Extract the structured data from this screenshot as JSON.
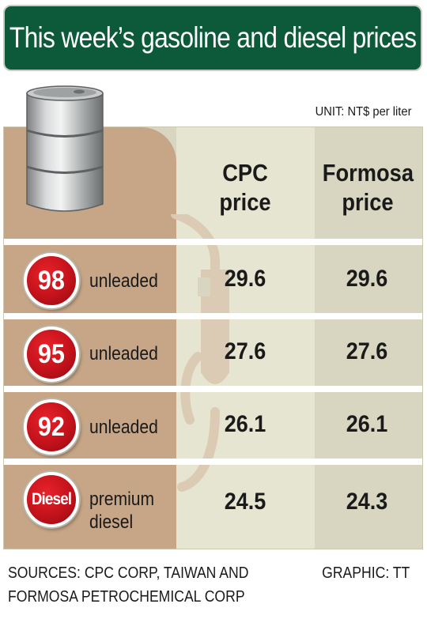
{
  "title": "This week’s gasoline and diesel prices",
  "unit": "UNIT: NT$ per liter",
  "columns": {
    "cpc_line1": "CPC",
    "cpc_line2": "price",
    "formosa_line1": "Formosa",
    "formosa_line2": "price"
  },
  "rows": [
    {
      "badge": "98",
      "grade_line1": "unleaded",
      "grade_line2": "",
      "cpc": "29.6",
      "formosa": "29.6"
    },
    {
      "badge": "95",
      "grade_line1": "unleaded",
      "grade_line2": "",
      "cpc": "27.6",
      "formosa": "27.6"
    },
    {
      "badge": "92",
      "grade_line1": "unleaded",
      "grade_line2": "",
      "cpc": "26.1",
      "formosa": "26.1"
    },
    {
      "badge": "Diesel",
      "grade_line1": "premium",
      "grade_line2": "diesel",
      "cpc": "24.5",
      "formosa": "24.3"
    }
  ],
  "sources_line1": "SOURCES: CPC CORP, TAIWAN AND",
  "sources_line2": "FORMOSA PETROCHEMICAL CORP",
  "graphic": "GRAPHIC: TT",
  "colors": {
    "title_bg": "#0c5a3a",
    "badge_red": "#c3121b",
    "tan": "#c7a587",
    "panel": "#d8d6c0"
  },
  "chart_data": {
    "type": "table",
    "title": "This week’s gasoline and diesel prices",
    "unit": "NT$ per liter",
    "columns": [
      "CPC price",
      "Formosa price"
    ],
    "categories": [
      "98 unleaded",
      "95 unleaded",
      "92 unleaded",
      "Diesel premium diesel"
    ],
    "series": [
      {
        "name": "CPC price",
        "values": [
          29.6,
          27.6,
          26.1,
          24.5
        ]
      },
      {
        "name": "Formosa price",
        "values": [
          29.6,
          27.6,
          26.1,
          24.3
        ]
      }
    ]
  }
}
